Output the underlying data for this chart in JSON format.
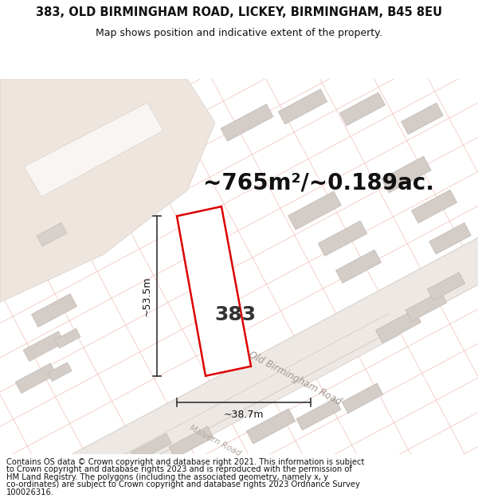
{
  "title_line1": "383, OLD BIRMINGHAM ROAD, LICKEY, BIRMINGHAM, B45 8EU",
  "title_line2": "Map shows position and indicative extent of the property.",
  "area_text": "~765m²/~0.189ac.",
  "label_383": "383",
  "dim_height": "~53.5m",
  "dim_width": "~38.7m",
  "footer_lines": [
    "Contains OS data © Crown copyright and database right 2021. This information is subject",
    "to Crown copyright and database rights 2023 and is reproduced with the permission of",
    "HM Land Registry. The polygons (including the associated geometry, namely x, y",
    "co-ordinates) are subject to Crown copyright and database rights 2023 Ordnance Survey",
    "100026316."
  ],
  "map_bg": "#f9f6f3",
  "plot_outline_color": "#dd0000",
  "road_label1": "Old Birmingham Road",
  "road_label2": "Malvern Road",
  "title_fontsize": 10.5,
  "subtitle_fontsize": 9.0,
  "area_fontsize": 20,
  "label_fontsize": 18,
  "dim_fontsize": 9,
  "footer_fontsize": 7.2,
  "road_label_fontsize": 8.5,
  "road2_label_fontsize": 7.5
}
